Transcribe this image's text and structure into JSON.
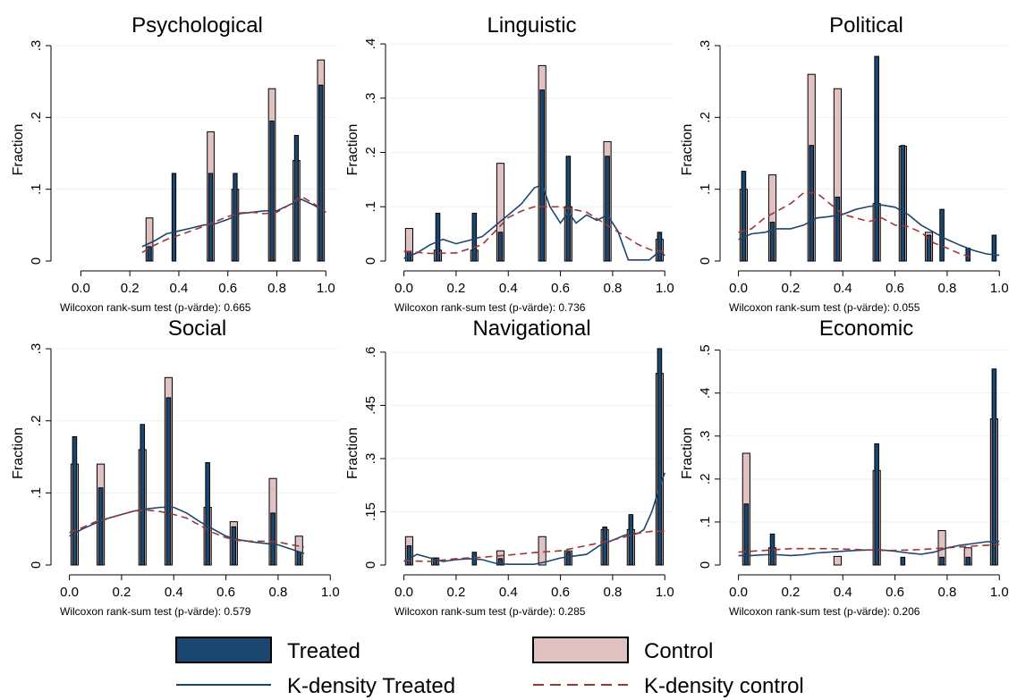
{
  "colors": {
    "treated": "#1a476f",
    "control": "#e0c2c2",
    "kdens_treated": "#1a476f",
    "kdens_control": "#9e3636",
    "grid": "#eaf2f3"
  },
  "legend": {
    "position": "bottom",
    "treated": "Treated",
    "control": "Control",
    "kdens_treated": "K-density Treated",
    "kdens_control": "K-density control"
  },
  "chart_data": [
    {
      "type": "bar",
      "title": "Psychological",
      "ylabel": "Fraction",
      "xlim": [
        -0.1,
        1.05
      ],
      "ylim": [
        0,
        0.31
      ],
      "xticks": [
        0,
        0.2,
        0.4,
        0.6,
        0.8,
        1.0
      ],
      "xtick_labels": [
        "0.0",
        "0.2",
        "0.4",
        "0.6",
        "0.8",
        "1.0"
      ],
      "yticks": [
        0,
        0.1,
        0.2,
        0.3
      ],
      "ytick_labels": [
        "0",
        ".1",
        ".2",
        ".3"
      ],
      "grid": true,
      "note": "Wilcoxon rank-sum test (p-värde): 0.665",
      "control": {
        "x": [
          0.28,
          0.53,
          0.63,
          0.78,
          0.88,
          0.98
        ],
        "values": [
          0.06,
          0.18,
          0.1,
          0.24,
          0.14,
          0.28
        ]
      },
      "treated": {
        "x": [
          0.28,
          0.38,
          0.53,
          0.63,
          0.78,
          0.88,
          0.98
        ],
        "values": [
          0.02,
          0.122,
          0.122,
          0.122,
          0.195,
          0.175,
          0.245
        ]
      },
      "kdens_treated": {
        "x": [
          0.25,
          0.3,
          0.35,
          0.4,
          0.45,
          0.5,
          0.55,
          0.6,
          0.65,
          0.7,
          0.75,
          0.8,
          0.85,
          0.9,
          0.95,
          1.0
        ],
        "y": [
          0.02,
          0.028,
          0.038,
          0.042,
          0.046,
          0.05,
          0.052,
          0.058,
          0.066,
          0.068,
          0.07,
          0.07,
          0.078,
          0.086,
          0.078,
          0.068
        ]
      },
      "kdens_control": {
        "x": [
          0.25,
          0.3,
          0.35,
          0.4,
          0.45,
          0.5,
          0.55,
          0.6,
          0.65,
          0.7,
          0.75,
          0.8,
          0.85,
          0.9,
          0.95,
          1.0
        ],
        "y": [
          0.012,
          0.022,
          0.03,
          0.036,
          0.042,
          0.048,
          0.055,
          0.062,
          0.067,
          0.068,
          0.066,
          0.068,
          0.078,
          0.09,
          0.08,
          0.068
        ]
      }
    },
    {
      "type": "bar",
      "title": "Linguistic",
      "ylabel": "Fraction",
      "xlim": [
        -0.05,
        1.03
      ],
      "ylim": [
        0,
        0.41
      ],
      "xticks": [
        0,
        0.2,
        0.4,
        0.6,
        0.8,
        1.0
      ],
      "xtick_labels": [
        "0.0",
        "0.2",
        "0.4",
        "0.6",
        "0.8",
        "1.0"
      ],
      "yticks": [
        0,
        0.1,
        0.2,
        0.3,
        0.4
      ],
      "ytick_labels": [
        "0",
        ".1",
        ".2",
        ".3",
        ".4"
      ],
      "grid": true,
      "note": "Wilcoxon rank-sum test (p-värde): 0.736",
      "control": {
        "x": [
          0.02,
          0.13,
          0.27,
          0.37,
          0.53,
          0.63,
          0.78,
          0.98
        ],
        "values": [
          0.06,
          0.02,
          0.02,
          0.18,
          0.36,
          0.1,
          0.22,
          0.04
        ]
      },
      "treated": {
        "x": [
          0.02,
          0.13,
          0.27,
          0.37,
          0.53,
          0.63,
          0.78,
          0.98
        ],
        "values": [
          0.018,
          0.088,
          0.088,
          0.053,
          0.315,
          0.193,
          0.193,
          0.053
        ]
      },
      "kdens_treated": {
        "x": [
          0.0,
          0.05,
          0.1,
          0.15,
          0.2,
          0.25,
          0.3,
          0.35,
          0.4,
          0.45,
          0.5,
          0.53,
          0.56,
          0.6,
          0.63,
          0.66,
          0.7,
          0.74,
          0.78,
          0.82,
          0.86,
          0.9,
          0.94,
          0.98,
          1.0
        ],
        "y": [
          0.005,
          0.015,
          0.03,
          0.04,
          0.032,
          0.038,
          0.045,
          0.065,
          0.085,
          0.105,
          0.135,
          0.14,
          0.1,
          0.07,
          0.09,
          0.07,
          0.085,
          0.075,
          0.085,
          0.055,
          0.002,
          0.002,
          0.002,
          0.018,
          0.01
        ]
      },
      "kdens_control": {
        "x": [
          0.0,
          0.1,
          0.2,
          0.3,
          0.35,
          0.4,
          0.45,
          0.5,
          0.55,
          0.6,
          0.65,
          0.7,
          0.75,
          0.8,
          0.85,
          0.9,
          0.95,
          1.0
        ],
        "y": [
          0.018,
          0.014,
          0.015,
          0.03,
          0.055,
          0.08,
          0.092,
          0.1,
          0.1,
          0.1,
          0.095,
          0.09,
          0.075,
          0.06,
          0.045,
          0.03,
          0.02,
          0.018
        ]
      }
    },
    {
      "type": "bar",
      "title": "Political",
      "ylabel": "Fraction",
      "xlim": [
        -0.05,
        1.03
      ],
      "ylim": [
        0,
        0.31
      ],
      "xticks": [
        0,
        0.2,
        0.4,
        0.6,
        0.8,
        1.0
      ],
      "xtick_labels": [
        "0.0",
        "0.2",
        "0.4",
        "0.6",
        "0.8",
        "1.0"
      ],
      "yticks": [
        0,
        0.1,
        0.2,
        0.3
      ],
      "ytick_labels": [
        "0",
        ".1",
        ".2",
        ".3"
      ],
      "grid": true,
      "note": "Wilcoxon rank-sum test (p-värde): 0.055",
      "control": {
        "x": [
          0.02,
          0.13,
          0.28,
          0.38,
          0.53,
          0.63,
          0.73
        ],
        "values": [
          0.1,
          0.12,
          0.26,
          0.24,
          0.08,
          0.16,
          0.04
        ]
      },
      "treated": {
        "x": [
          0.02,
          0.13,
          0.28,
          0.38,
          0.53,
          0.63,
          0.73,
          0.78,
          0.88,
          0.98
        ],
        "values": [
          0.125,
          0.054,
          0.161,
          0.089,
          0.285,
          0.161,
          0.036,
          0.072,
          0.018,
          0.036
        ]
      },
      "kdens_treated": {
        "x": [
          0.0,
          0.05,
          0.1,
          0.15,
          0.2,
          0.25,
          0.3,
          0.35,
          0.4,
          0.45,
          0.5,
          0.55,
          0.6,
          0.65,
          0.7,
          0.75,
          0.8,
          0.85,
          0.9,
          0.95,
          1.0
        ],
        "y": [
          0.03,
          0.038,
          0.04,
          0.045,
          0.045,
          0.05,
          0.06,
          0.062,
          0.065,
          0.072,
          0.076,
          0.078,
          0.075,
          0.065,
          0.05,
          0.04,
          0.03,
          0.022,
          0.015,
          0.01,
          0.008
        ]
      },
      "kdens_control": {
        "x": [
          0.0,
          0.05,
          0.1,
          0.15,
          0.2,
          0.25,
          0.3,
          0.35,
          0.4,
          0.45,
          0.5,
          0.55,
          0.6,
          0.65,
          0.7,
          0.75,
          0.8,
          0.85,
          0.9
        ],
        "y": [
          0.04,
          0.045,
          0.06,
          0.07,
          0.08,
          0.095,
          0.095,
          0.08,
          0.065,
          0.06,
          0.055,
          0.06,
          0.05,
          0.048,
          0.04,
          0.025,
          0.018,
          0.01,
          0.005
        ]
      }
    },
    {
      "type": "bar",
      "title": "Social",
      "ylabel": "Fraction",
      "xlim": [
        -0.05,
        1.03
      ],
      "ylim": [
        0,
        0.31
      ],
      "xticks": [
        0,
        0.2,
        0.4,
        0.6,
        0.8,
        1.0
      ],
      "xtick_labels": [
        "0.0",
        "0.2",
        "0.4",
        "0.6",
        "0.8",
        "1.0"
      ],
      "yticks": [
        0,
        0.1,
        0.2,
        0.3
      ],
      "ytick_labels": [
        "0",
        ".1",
        ".2",
        ".3"
      ],
      "grid": true,
      "note": "Wilcoxon rank-sum test (p-värde): 0.579",
      "control": {
        "x": [
          0.02,
          0.12,
          0.28,
          0.38,
          0.53,
          0.63,
          0.78,
          0.88
        ],
        "values": [
          0.14,
          0.14,
          0.16,
          0.26,
          0.08,
          0.06,
          0.12,
          0.04
        ]
      },
      "treated": {
        "x": [
          0.02,
          0.12,
          0.28,
          0.38,
          0.53,
          0.63,
          0.78,
          0.88
        ],
        "values": [
          0.178,
          0.107,
          0.195,
          0.232,
          0.142,
          0.053,
          0.072,
          0.018
        ]
      },
      "kdens_treated": {
        "x": [
          0.0,
          0.05,
          0.1,
          0.15,
          0.2,
          0.25,
          0.3,
          0.35,
          0.4,
          0.45,
          0.5,
          0.55,
          0.6,
          0.65,
          0.7,
          0.75,
          0.8,
          0.85,
          0.9
        ],
        "y": [
          0.04,
          0.05,
          0.058,
          0.065,
          0.07,
          0.075,
          0.078,
          0.08,
          0.08,
          0.072,
          0.06,
          0.05,
          0.04,
          0.035,
          0.032,
          0.03,
          0.028,
          0.022,
          0.016
        ]
      },
      "kdens_control": {
        "x": [
          0.0,
          0.05,
          0.1,
          0.15,
          0.2,
          0.25,
          0.3,
          0.35,
          0.4,
          0.45,
          0.5,
          0.55,
          0.6,
          0.65,
          0.7,
          0.75,
          0.8,
          0.85,
          0.9
        ],
        "y": [
          0.045,
          0.052,
          0.06,
          0.065,
          0.07,
          0.075,
          0.076,
          0.074,
          0.07,
          0.065,
          0.055,
          0.045,
          0.038,
          0.034,
          0.033,
          0.033,
          0.032,
          0.028,
          0.025
        ]
      }
    },
    {
      "type": "bar",
      "title": "Navigational",
      "ylabel": "Fraction",
      "xlim": [
        -0.05,
        1.03
      ],
      "ylim": [
        0,
        0.63
      ],
      "xticks": [
        0,
        0.2,
        0.4,
        0.6,
        0.8,
        1.0
      ],
      "xtick_labels": [
        "0.0",
        "0.2",
        "0.4",
        "0.6",
        "0.8",
        "1.0"
      ],
      "yticks": [
        0,
        0.15,
        0.3,
        0.45,
        0.6
      ],
      "ytick_labels": [
        "0",
        ".15",
        ".3",
        ".45",
        ".6"
      ],
      "grid": true,
      "note": "Wilcoxon rank-sum test (p-värde): 0.285",
      "control": {
        "x": [
          0.02,
          0.12,
          0.37,
          0.53,
          0.63,
          0.77,
          0.87,
          0.98
        ],
        "values": [
          0.08,
          0.02,
          0.04,
          0.08,
          0.04,
          0.1,
          0.1,
          0.54
        ]
      },
      "treated": {
        "x": [
          0.02,
          0.12,
          0.27,
          0.37,
          0.63,
          0.77,
          0.87,
          0.98
        ],
        "values": [
          0.054,
          0.018,
          0.036,
          0.018,
          0.036,
          0.107,
          0.142,
          0.61
        ]
      },
      "kdens_treated": {
        "x": [
          0.0,
          0.05,
          0.1,
          0.15,
          0.2,
          0.25,
          0.3,
          0.35,
          0.4,
          0.45,
          0.5,
          0.55,
          0.6,
          0.65,
          0.7,
          0.75,
          0.8,
          0.85,
          0.9,
          0.92,
          0.95,
          0.98,
          1.0
        ],
        "y": [
          0.01,
          0.03,
          0.02,
          0.01,
          0.015,
          0.018,
          0.015,
          0.005,
          0.002,
          0.002,
          0.002,
          0.01,
          0.02,
          0.025,
          0.03,
          0.055,
          0.07,
          0.085,
          0.09,
          0.1,
          0.15,
          0.22,
          0.26
        ]
      },
      "kdens_control": {
        "x": [
          0.0,
          0.1,
          0.2,
          0.3,
          0.4,
          0.5,
          0.6,
          0.7,
          0.8,
          0.85,
          0.9,
          0.95,
          1.0
        ],
        "y": [
          0.012,
          0.01,
          0.018,
          0.022,
          0.028,
          0.035,
          0.04,
          0.055,
          0.07,
          0.08,
          0.09,
          0.095,
          0.095
        ]
      }
    },
    {
      "type": "bar",
      "title": "Economic",
      "ylabel": "Fraction",
      "xlim": [
        -0.05,
        1.03
      ],
      "ylim": [
        0,
        0.52
      ],
      "xticks": [
        0,
        0.2,
        0.4,
        0.6,
        0.8,
        1.0
      ],
      "xtick_labels": [
        "0.0",
        "0.2",
        "0.4",
        "0.6",
        "0.8",
        "1.0"
      ],
      "yticks": [
        0,
        0.1,
        0.2,
        0.3,
        0.4,
        0.5
      ],
      "ytick_labels": [
        "0",
        ".1",
        ".2",
        ".3",
        ".4",
        ".5"
      ],
      "grid": true,
      "note": "Wilcoxon rank-sum test (p-värde): 0.206",
      "control": {
        "x": [
          0.03,
          0.13,
          0.38,
          0.53,
          0.78,
          0.88,
          0.98
        ],
        "values": [
          0.26,
          0.04,
          0.02,
          0.22,
          0.08,
          0.04,
          0.34
        ]
      },
      "treated": {
        "x": [
          0.03,
          0.13,
          0.53,
          0.63,
          0.78,
          0.88,
          0.98
        ],
        "values": [
          0.142,
          0.072,
          0.282,
          0.018,
          0.018,
          0.018,
          0.456
        ]
      },
      "kdens_treated": {
        "x": [
          0.0,
          0.05,
          0.1,
          0.15,
          0.2,
          0.25,
          0.3,
          0.35,
          0.4,
          0.45,
          0.5,
          0.55,
          0.6,
          0.65,
          0.7,
          0.75,
          0.8,
          0.85,
          0.9,
          0.95,
          1.0
        ],
        "y": [
          0.022,
          0.022,
          0.024,
          0.024,
          0.022,
          0.024,
          0.028,
          0.03,
          0.032,
          0.034,
          0.035,
          0.035,
          0.032,
          0.028,
          0.025,
          0.03,
          0.04,
          0.046,
          0.05,
          0.054,
          0.055
        ]
      },
      "kdens_control": {
        "x": [
          0.0,
          0.05,
          0.1,
          0.15,
          0.2,
          0.25,
          0.3,
          0.35,
          0.4,
          0.45,
          0.5,
          0.55,
          0.6,
          0.65,
          0.7,
          0.75,
          0.8,
          0.85,
          0.9,
          0.95,
          1.0
        ],
        "y": [
          0.03,
          0.032,
          0.034,
          0.036,
          0.038,
          0.038,
          0.038,
          0.038,
          0.037,
          0.036,
          0.035,
          0.034,
          0.034,
          0.035,
          0.036,
          0.038,
          0.04,
          0.042,
          0.044,
          0.046,
          0.048
        ]
      }
    }
  ]
}
